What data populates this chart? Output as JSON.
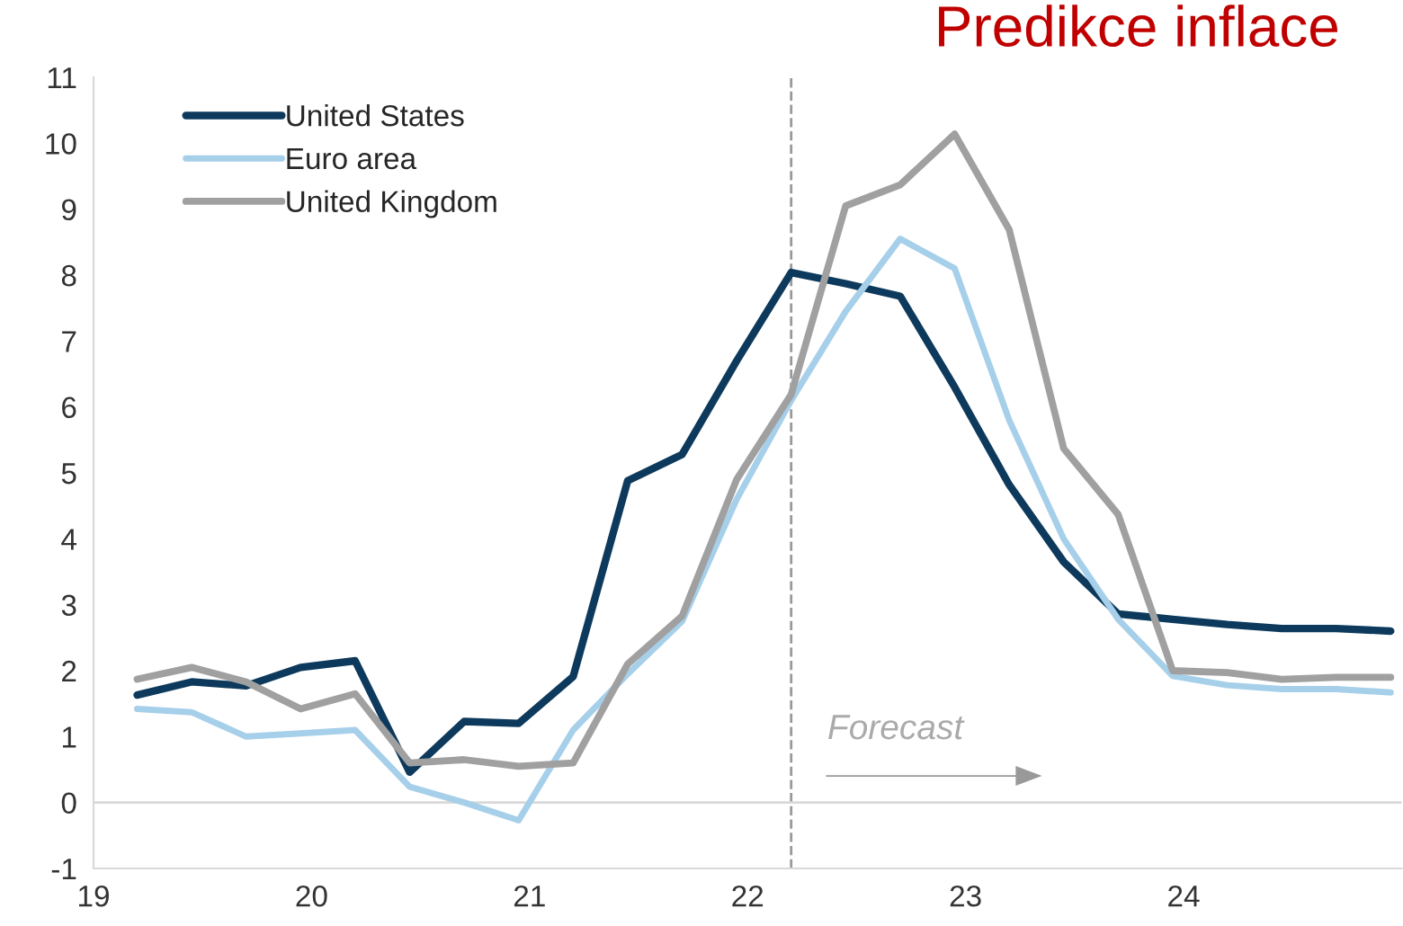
{
  "chart_data": {
    "type": "line",
    "title": "Predikce inflace",
    "x": [
      19.2,
      19.45,
      19.7,
      19.95,
      20.2,
      20.45,
      20.7,
      20.95,
      21.2,
      21.45,
      21.7,
      21.95,
      22.2,
      22.45,
      22.7,
      22.95,
      23.2,
      23.45,
      23.7,
      23.95,
      24.2,
      24.45,
      24.7,
      24.95
    ],
    "series": [
      {
        "name": "United States",
        "color": "#0d3a5c",
        "values": [
          1.63,
          1.83,
          1.77,
          2.05,
          2.15,
          0.46,
          1.23,
          1.2,
          1.91,
          4.88,
          5.28,
          6.7,
          8.04,
          7.87,
          7.68,
          6.3,
          4.82,
          3.65,
          2.86,
          2.78,
          2.7,
          2.64,
          2.64,
          2.6
        ]
      },
      {
        "name": "Euro area",
        "color": "#a6cfea",
        "values": [
          1.42,
          1.37,
          1.0,
          1.05,
          1.1,
          0.24,
          0.0,
          -0.27,
          1.1,
          1.95,
          2.75,
          4.6,
          6.1,
          7.45,
          8.55,
          8.1,
          5.8,
          4.0,
          2.78,
          1.92,
          1.78,
          1.72,
          1.72,
          1.67
        ]
      },
      {
        "name": "United Kingdom",
        "color": "#a0a0a0",
        "values": [
          1.87,
          2.05,
          1.83,
          1.42,
          1.65,
          0.6,
          0.65,
          0.55,
          0.6,
          2.1,
          2.83,
          4.9,
          6.19,
          9.05,
          9.37,
          10.14,
          8.69,
          5.37,
          4.37,
          2.0,
          1.97,
          1.87,
          1.9,
          1.9
        ]
      }
    ],
    "xlim": [
      19,
      25
    ],
    "xticks": [
      19,
      20,
      21,
      22,
      23,
      24
    ],
    "ylim": [
      -1,
      11
    ],
    "yticks": [
      -1,
      0,
      1,
      2,
      3,
      4,
      5,
      6,
      7,
      8,
      9,
      10,
      11
    ],
    "ref_lines": [
      {
        "axis": "x",
        "value": 22.2,
        "color": "#999999",
        "line_style": "dashed"
      },
      {
        "axis": "y",
        "value": 0,
        "color": "#d9d9d9",
        "line_style": "solid"
      }
    ],
    "annotations": [
      "Forecast"
    ],
    "legend": "top left",
    "grid": false,
    "marker": "none",
    "line_style": "solid"
  }
}
